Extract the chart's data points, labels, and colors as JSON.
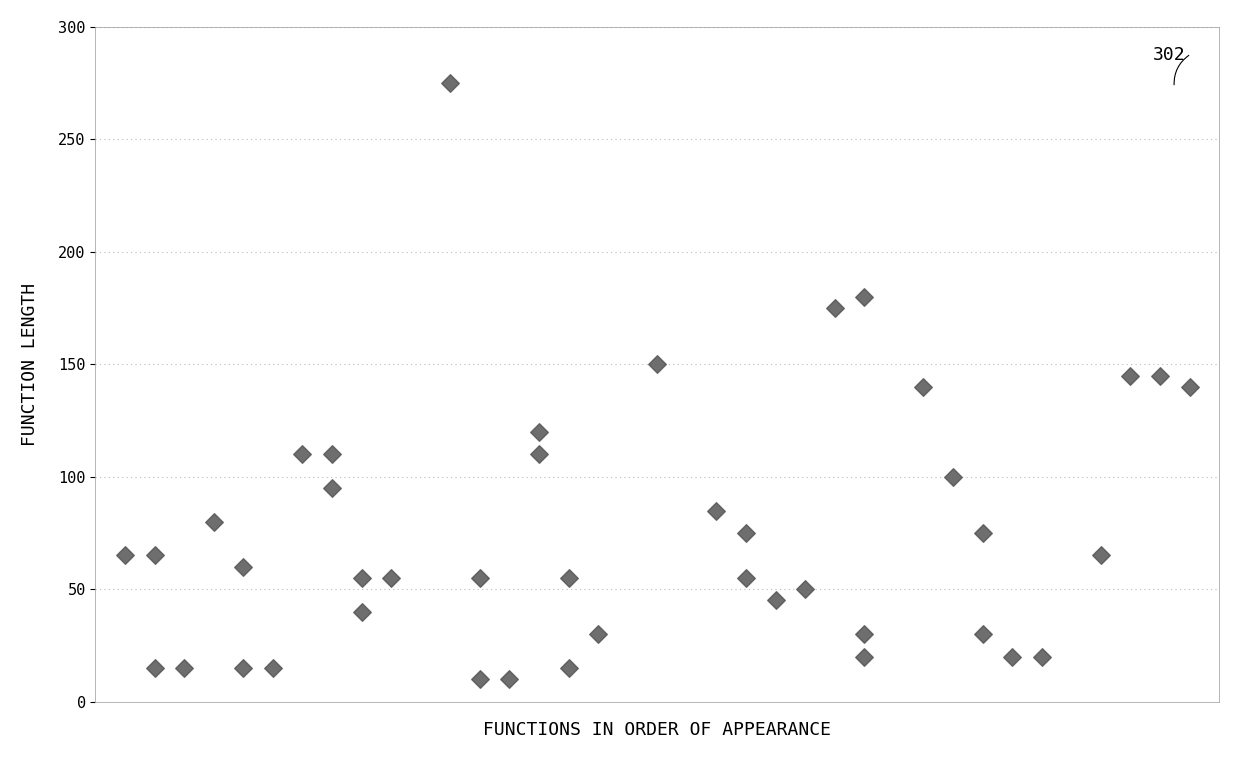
{
  "title": "",
  "xlabel": "FUNCTIONS IN ORDER OF APPEARANCE",
  "ylabel": "FUNCTION LENGTH",
  "annotation": "302",
  "xlim": [
    0,
    38
  ],
  "ylim": [
    0,
    300
  ],
  "yticks": [
    0,
    50,
    100,
    150,
    200,
    250,
    300
  ],
  "ytick_labels": [
    "0",
    "50",
    "100",
    "150",
    "200",
    "250",
    "300"
  ],
  "background_color": "#ffffff",
  "grid_color": "#bbbbbb",
  "dot_color": "#555555",
  "dot_size": 80,
  "points": [
    [
      1,
      65
    ],
    [
      2,
      65
    ],
    [
      2,
      15
    ],
    [
      3,
      15
    ],
    [
      4,
      80
    ],
    [
      5,
      60
    ],
    [
      5,
      15
    ],
    [
      6,
      15
    ],
    [
      7,
      110
    ],
    [
      8,
      110
    ],
    [
      8,
      95
    ],
    [
      9,
      55
    ],
    [
      9,
      40
    ],
    [
      10,
      55
    ],
    [
      12,
      275
    ],
    [
      13,
      10
    ],
    [
      13,
      55
    ],
    [
      14,
      10
    ],
    [
      15,
      110
    ],
    [
      15,
      120
    ],
    [
      16,
      55
    ],
    [
      16,
      15
    ],
    [
      17,
      30
    ],
    [
      19,
      150
    ],
    [
      21,
      85
    ],
    [
      22,
      75
    ],
    [
      22,
      55
    ],
    [
      23,
      45
    ],
    [
      24,
      50
    ],
    [
      25,
      175
    ],
    [
      26,
      180
    ],
    [
      26,
      30
    ],
    [
      26,
      20
    ],
    [
      28,
      140
    ],
    [
      29,
      100
    ],
    [
      30,
      75
    ],
    [
      30,
      30
    ],
    [
      31,
      20
    ],
    [
      32,
      20
    ],
    [
      34,
      65
    ],
    [
      35,
      145
    ],
    [
      36,
      145
    ],
    [
      37,
      140
    ]
  ],
  "label_fontsize": 13,
  "tick_fontsize": 11
}
